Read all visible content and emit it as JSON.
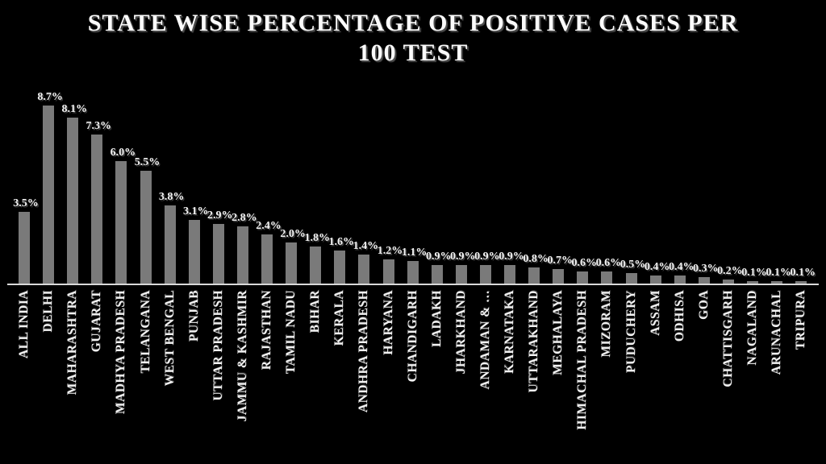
{
  "chart_data": {
    "type": "bar",
    "title": "STATE WISE PERCENTAGE OF POSITIVE CASES PER 100 TEST",
    "title_lines": [
      "STATE WISE PERCENTAGE OF POSITIVE CASES PER",
      "100 TEST"
    ],
    "categories": [
      "ALL INDIA",
      "DELHI",
      "MAHARASHTRA",
      "GUJARAT",
      "MADHYA PRADESH",
      "TELANGANA",
      "WEST BENGAL",
      "PUNJAB",
      "UTTAR PRADESH",
      "JAMMU & KASHMIR",
      "RAJASTHAN",
      "TAMIL NADU",
      "BIHAR",
      "KERALA",
      "ANDHRA PRADESH",
      "HARYANA",
      "CHANDIGARH",
      "LADAKH",
      "JHARKHAND",
      "ANDAMAN & …",
      "KARNATAKA",
      "UTTARAKHAND",
      "MEGHALAYA",
      "HIMACHAL PRADESH",
      "MIZORAM",
      "PUDUCHERY",
      "ASSAM",
      "ODHISA",
      "GOA",
      "CHATTISGARH",
      "NAGALAND",
      "ARUNACHAL",
      "TRIPURA"
    ],
    "values": [
      3.5,
      8.7,
      8.1,
      7.3,
      6.0,
      5.5,
      3.8,
      3.1,
      2.9,
      2.8,
      2.4,
      2.0,
      1.8,
      1.6,
      1.4,
      1.2,
      1.1,
      0.9,
      0.9,
      0.9,
      0.9,
      0.8,
      0.7,
      0.6,
      0.6,
      0.5,
      0.4,
      0.4,
      0.3,
      0.2,
      0.1,
      0.1,
      0.1
    ],
    "data_labels": [
      "3.5%",
      "8.7%",
      "8.1%",
      "7.3%",
      "6.0%",
      "5.5%",
      "3.8%",
      "3.1%",
      "2.9%",
      "2.8%",
      "2.4%",
      "2.0%",
      "1.8%",
      "1.6%",
      "1.4%",
      "1.2%",
      "1.1%",
      "0.9%",
      "0.9%",
      "0.9%",
      "0.9%",
      "0.8%",
      "0.7%",
      "0.6%",
      "0.6%",
      "0.5%",
      "0.4%",
      "0.4%",
      "0.3%",
      "0.2%",
      "0.1%",
      "0.1%",
      "0.1%"
    ],
    "xlabel": "",
    "ylabel": "",
    "ylim": [
      0,
      9
    ],
    "grid": false,
    "legend": false,
    "colors": {
      "background": "#000000",
      "bar": "#7a7a7a",
      "text": "#f2f2f2",
      "axis": "#d9d9d9"
    }
  }
}
